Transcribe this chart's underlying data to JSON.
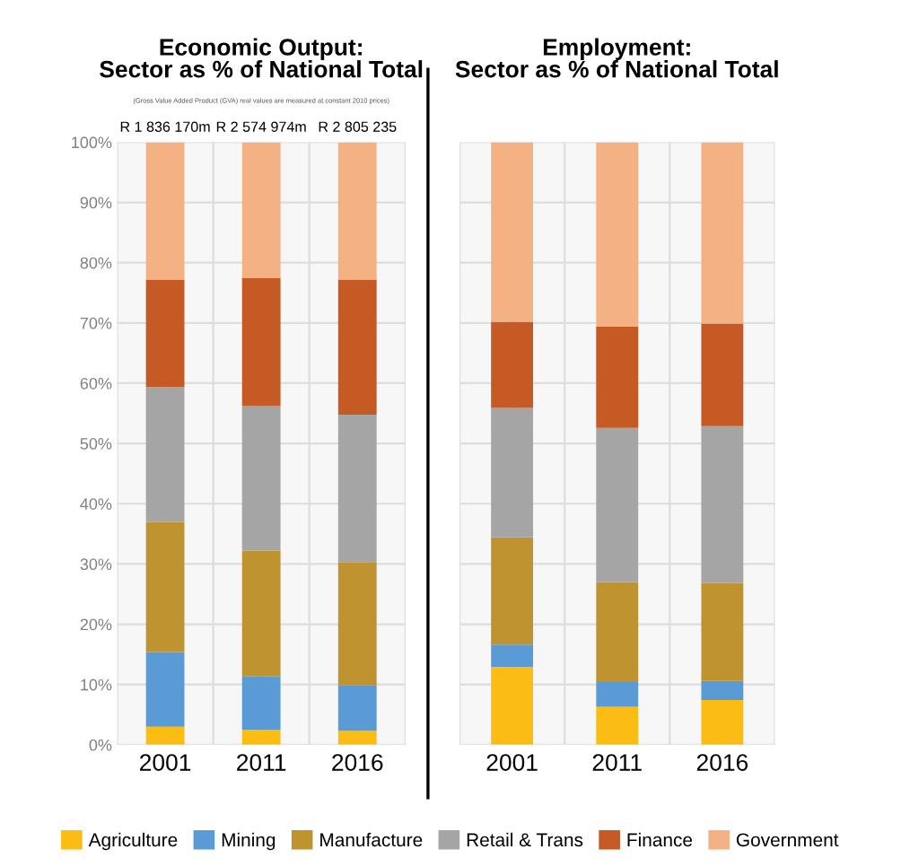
{
  "chart_data": [
    {
      "type": "bar",
      "stacked": true,
      "title": "Economic Output:\nSector as % of National Total",
      "subtitle": "(Gross Value Added Product (GVA) real values are measured at constant 2010 prices)",
      "categories": [
        "2001",
        "2011",
        "2016"
      ],
      "series": [
        {
          "name": "Agriculture",
          "color": "#fbbd13",
          "values": [
            3.0,
            2.5,
            2.3
          ]
        },
        {
          "name": "Mining",
          "color": "#5b9bd5",
          "values": [
            12.4,
            8.9,
            7.6
          ]
        },
        {
          "name": "Manufacture",
          "color": "#bf9430",
          "values": [
            21.6,
            20.8,
            20.4
          ]
        },
        {
          "name": "Retail & Trans",
          "color": "#a5a5a5",
          "values": [
            22.4,
            24.0,
            24.5
          ]
        },
        {
          "name": "Finance",
          "color": "#c55a25",
          "values": [
            17.8,
            21.3,
            22.4
          ]
        },
        {
          "name": "Government",
          "color": "#f4b183",
          "values": [
            22.8,
            22.5,
            22.8
          ]
        }
      ],
      "ylim": [
        0,
        100
      ],
      "yticks": [
        {
          "value": 0,
          "label": "0%"
        },
        {
          "value": 10,
          "label": "10%"
        },
        {
          "value": 20,
          "label": "20%"
        },
        {
          "value": 30,
          "label": "30%"
        },
        {
          "value": 40,
          "label": "40%"
        },
        {
          "value": 50,
          "label": "50%"
        },
        {
          "value": 60,
          "label": "60%"
        },
        {
          "value": 70,
          "label": "70%"
        },
        {
          "value": 80,
          "label": "80%"
        },
        {
          "value": 90,
          "label": "90%"
        },
        {
          "value": 100,
          "label": "100%"
        }
      ],
      "annotations": [
        {
          "text": "R 1 836 170m",
          "x": "2001",
          "y": 100
        },
        {
          "text": "R 2 574 974m",
          "x": "2011",
          "y": 100
        },
        {
          "text": "R 2 805 235",
          "x": "2016",
          "y": 100
        }
      ],
      "grid": true,
      "legend": "bottom"
    },
    {
      "type": "bar",
      "stacked": true,
      "title": "Employment:\nSector as % of National Total",
      "categories": [
        "2001",
        "2011",
        "2016"
      ],
      "series": [
        {
          "color": "#fbbd13",
          "values": [
            12.9,
            6.3,
            7.4
          ]
        },
        {
          "color": "#5b9bd5",
          "values": [
            3.7,
            4.1,
            3.2
          ]
        },
        {
          "color": "#bf9430",
          "values": [
            17.8,
            16.6,
            16.2
          ]
        },
        {
          "color": "#a5a5a5",
          "values": [
            21.5,
            25.6,
            26.1
          ]
        },
        {
          "color": "#c55a25",
          "values": [
            14.3,
            16.8,
            17.0
          ]
        },
        {
          "color": "#f4b183",
          "values": [
            29.8,
            30.6,
            30.1
          ]
        }
      ],
      "ylim": [
        0,
        100
      ],
      "tick_labels": "x",
      "grid": true
    }
  ]
}
